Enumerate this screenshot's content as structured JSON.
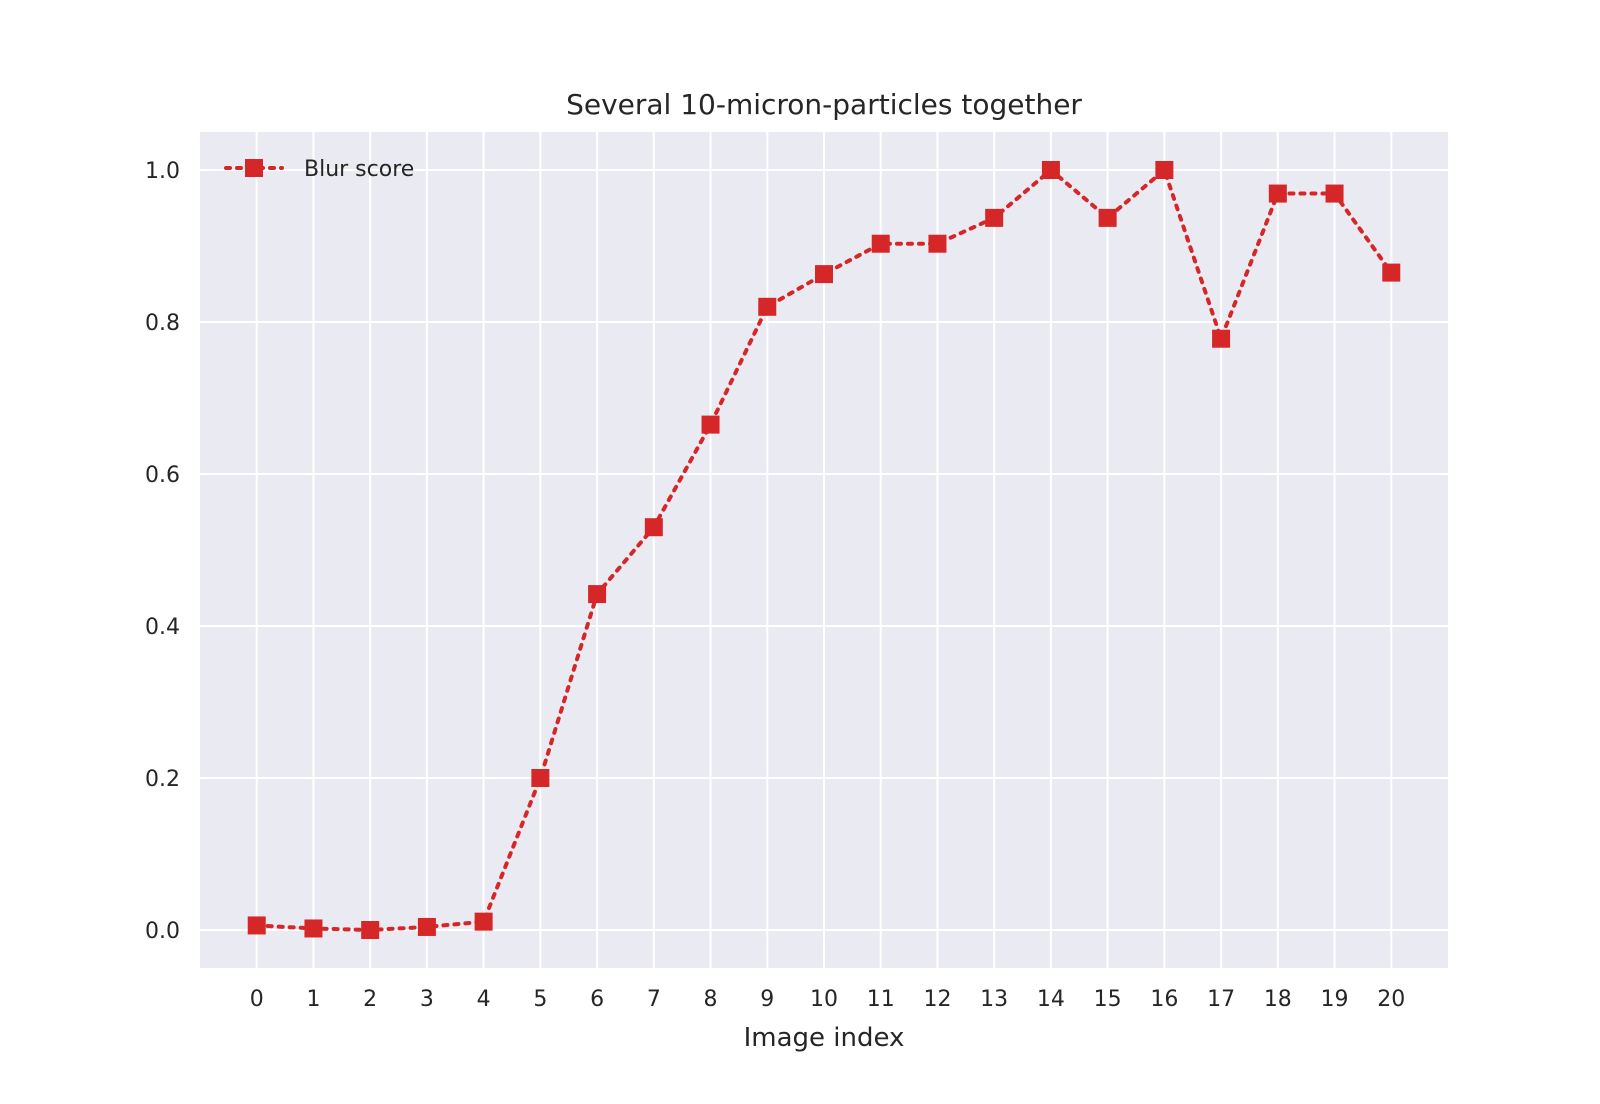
{
  "chart_data": {
    "type": "line",
    "title": "Several 10-micron-particles together",
    "xlabel": "Image index",
    "ylabel": "",
    "x": [
      0,
      1,
      2,
      3,
      4,
      5,
      6,
      7,
      8,
      9,
      10,
      11,
      12,
      13,
      14,
      15,
      16,
      17,
      18,
      19,
      20
    ],
    "xticks": [
      "0",
      "1",
      "2",
      "3",
      "4",
      "5",
      "6",
      "7",
      "8",
      "9",
      "10",
      "11",
      "12",
      "13",
      "14",
      "15",
      "16",
      "17",
      "18",
      "19",
      "20"
    ],
    "xlim": [
      -1,
      21
    ],
    "ylim": [
      -0.05,
      1.05
    ],
    "yticks": [
      "0.0",
      "0.2",
      "0.4",
      "0.6",
      "0.8",
      "1.0"
    ],
    "ytick_values": [
      0.0,
      0.2,
      0.4,
      0.6,
      0.8,
      1.0
    ],
    "grid": true,
    "legend_position": "top-left",
    "series": [
      {
        "name": "Blur score",
        "color": "#d62728",
        "line_style": "dotted",
        "marker": "square",
        "values": [
          0.006,
          0.002,
          0.0,
          0.004,
          0.011,
          0.2,
          0.442,
          0.53,
          0.665,
          0.82,
          0.863,
          0.903,
          0.903,
          0.937,
          1.0,
          0.937,
          1.0,
          0.778,
          0.969,
          0.969,
          0.865
        ]
      }
    ],
    "colors": {
      "plot_background": "#eaeaf2",
      "grid": "#ffffff",
      "page_background": "#ffffff"
    }
  }
}
